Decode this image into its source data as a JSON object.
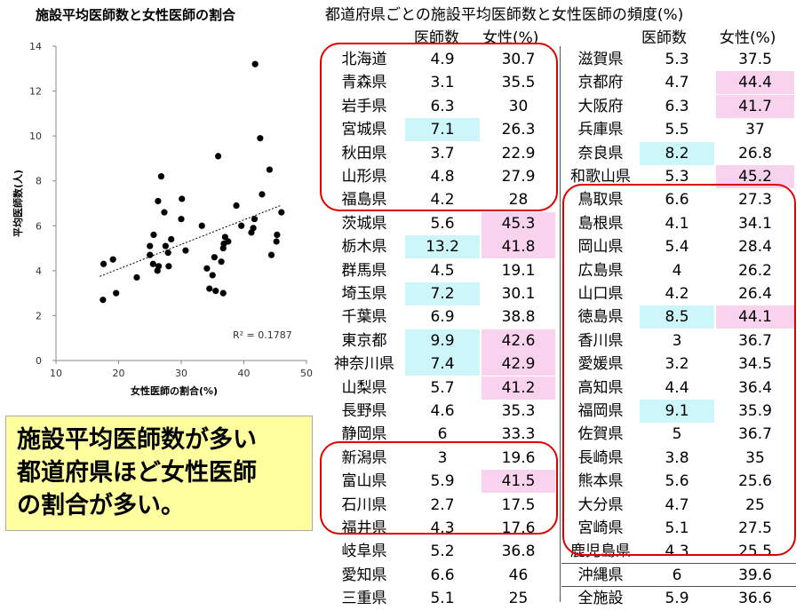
{
  "chart_data": {
    "type": "scatter",
    "title": "施設平均医師数と女性医師の割合",
    "xlabel": "女性医師の割合(%)",
    "ylabel": "平均医師数(人)",
    "xlim": [
      10,
      50
    ],
    "ylim": [
      0,
      14
    ],
    "x_ticks": [
      "10",
      "20",
      "30",
      "40",
      "50"
    ],
    "y_ticks": [
      "0",
      "2",
      "4",
      "6",
      "8",
      "10",
      "12",
      "14"
    ],
    "r2_label": "R² = 0.1787",
    "trendline": {
      "slope": 0.1093,
      "intercept": 1.89
    },
    "points": [
      [
        30.7,
        4.9
      ],
      [
        35.5,
        3.1
      ],
      [
        30,
        6.3
      ],
      [
        26.3,
        7.1
      ],
      [
        22.9,
        3.7
      ],
      [
        27.9,
        4.8
      ],
      [
        28,
        4.2
      ],
      [
        45.3,
        5.6
      ],
      [
        41.8,
        13.2
      ],
      [
        19.1,
        4.5
      ],
      [
        30.1,
        7.2
      ],
      [
        38.8,
        6.9
      ],
      [
        42.6,
        9.9
      ],
      [
        42.9,
        7.4
      ],
      [
        41.2,
        5.7
      ],
      [
        35.3,
        4.6
      ],
      [
        33.3,
        6
      ],
      [
        19.6,
        3
      ],
      [
        41.5,
        5.9
      ],
      [
        17.5,
        2.7
      ],
      [
        17.6,
        4.3
      ],
      [
        36.8,
        5.2
      ],
      [
        46,
        6.6
      ],
      [
        25,
        5.1
      ],
      [
        37.5,
        5.3
      ],
      [
        44.4,
        4.7
      ],
      [
        41.7,
        6.3
      ],
      [
        37,
        5.5
      ],
      [
        26.8,
        8.2
      ],
      [
        45.2,
        5.3
      ],
      [
        27.3,
        6.6
      ],
      [
        34.1,
        4.1
      ],
      [
        28.4,
        5.4
      ],
      [
        26.2,
        4
      ],
      [
        26.4,
        4.2
      ],
      [
        44.1,
        8.5
      ],
      [
        36.7,
        3
      ],
      [
        34.5,
        3.2
      ],
      [
        36.4,
        4.4
      ],
      [
        35.9,
        9.1
      ],
      [
        36.7,
        5
      ],
      [
        35,
        3.8
      ],
      [
        25.6,
        5.6
      ],
      [
        25,
        4.7
      ],
      [
        27.5,
        5.1
      ],
      [
        25.5,
        4.3
      ],
      [
        39.6,
        6
      ]
    ]
  },
  "table": {
    "title": "都道府県ごとの施設平均医師数と女性医師の頻度(%)",
    "header": {
      "doctors": "医師数",
      "female": "女性(%)"
    },
    "left": [
      {
        "pref": "北海道",
        "doctors": "4.9",
        "female": "30.7",
        "hl_d": "",
        "hl_f": ""
      },
      {
        "pref": "青森県",
        "doctors": "3.1",
        "female": "35.5",
        "hl_d": "",
        "hl_f": ""
      },
      {
        "pref": "岩手県",
        "doctors": "6.3",
        "female": "30",
        "hl_d": "",
        "hl_f": ""
      },
      {
        "pref": "宮城県",
        "doctors": "7.1",
        "female": "26.3",
        "hl_d": "cyan",
        "hl_f": ""
      },
      {
        "pref": "秋田県",
        "doctors": "3.7",
        "female": "22.9",
        "hl_d": "",
        "hl_f": ""
      },
      {
        "pref": "山形県",
        "doctors": "4.8",
        "female": "27.9",
        "hl_d": "",
        "hl_f": ""
      },
      {
        "pref": "福島県",
        "doctors": "4.2",
        "female": "28",
        "hl_d": "",
        "hl_f": ""
      },
      {
        "pref": "茨城県",
        "doctors": "5.6",
        "female": "45.3",
        "hl_d": "",
        "hl_f": "pink"
      },
      {
        "pref": "栃木県",
        "doctors": "13.2",
        "female": "41.8",
        "hl_d": "cyan",
        "hl_f": "pink"
      },
      {
        "pref": "群馬県",
        "doctors": "4.5",
        "female": "19.1",
        "hl_d": "",
        "hl_f": ""
      },
      {
        "pref": "埼玉県",
        "doctors": "7.2",
        "female": "30.1",
        "hl_d": "cyan",
        "hl_f": ""
      },
      {
        "pref": "千葉県",
        "doctors": "6.9",
        "female": "38.8",
        "hl_d": "",
        "hl_f": ""
      },
      {
        "pref": "東京都",
        "doctors": "9.9",
        "female": "42.6",
        "hl_d": "cyan",
        "hl_f": "pink"
      },
      {
        "pref": "神奈川県",
        "doctors": "7.4",
        "female": "42.9",
        "hl_d": "cyan",
        "hl_f": "pink"
      },
      {
        "pref": "山梨県",
        "doctors": "5.7",
        "female": "41.2",
        "hl_d": "",
        "hl_f": "pink"
      },
      {
        "pref": "長野県",
        "doctors": "4.6",
        "female": "35.3",
        "hl_d": "",
        "hl_f": ""
      },
      {
        "pref": "静岡県",
        "doctors": "6",
        "female": "33.3",
        "hl_d": "",
        "hl_f": ""
      },
      {
        "pref": "新潟県",
        "doctors": "3",
        "female": "19.6",
        "hl_d": "",
        "hl_f": ""
      },
      {
        "pref": "富山県",
        "doctors": "5.9",
        "female": "41.5",
        "hl_d": "",
        "hl_f": "pink"
      },
      {
        "pref": "石川県",
        "doctors": "2.7",
        "female": "17.5",
        "hl_d": "",
        "hl_f": ""
      },
      {
        "pref": "福井県",
        "doctors": "4.3",
        "female": "17.6",
        "hl_d": "",
        "hl_f": ""
      },
      {
        "pref": "岐阜県",
        "doctors": "5.2",
        "female": "36.8",
        "hl_d": "",
        "hl_f": ""
      },
      {
        "pref": "愛知県",
        "doctors": "6.6",
        "female": "46",
        "hl_d": "",
        "hl_f": ""
      },
      {
        "pref": "三重県",
        "doctors": "5.1",
        "female": "25",
        "hl_d": "",
        "hl_f": ""
      }
    ],
    "right": [
      {
        "pref": "滋賀県",
        "doctors": "5.3",
        "female": "37.5",
        "hl_d": "",
        "hl_f": ""
      },
      {
        "pref": "京都府",
        "doctors": "4.7",
        "female": "44.4",
        "hl_d": "",
        "hl_f": "pink"
      },
      {
        "pref": "大阪府",
        "doctors": "6.3",
        "female": "41.7",
        "hl_d": "",
        "hl_f": "pink"
      },
      {
        "pref": "兵庫県",
        "doctors": "5.5",
        "female": "37",
        "hl_d": "",
        "hl_f": ""
      },
      {
        "pref": "奈良県",
        "doctors": "8.2",
        "female": "26.8",
        "hl_d": "cyan",
        "hl_f": ""
      },
      {
        "pref": "和歌山県",
        "doctors": "5.3",
        "female": "45.2",
        "hl_d": "",
        "hl_f": "pink"
      },
      {
        "pref": "鳥取県",
        "doctors": "6.6",
        "female": "27.3",
        "hl_d": "",
        "hl_f": ""
      },
      {
        "pref": "島根県",
        "doctors": "4.1",
        "female": "34.1",
        "hl_d": "",
        "hl_f": ""
      },
      {
        "pref": "岡山県",
        "doctors": "5.4",
        "female": "28.4",
        "hl_d": "",
        "hl_f": ""
      },
      {
        "pref": "広島県",
        "doctors": "4",
        "female": "26.2",
        "hl_d": "",
        "hl_f": ""
      },
      {
        "pref": "山口県",
        "doctors": "4.2",
        "female": "26.4",
        "hl_d": "",
        "hl_f": ""
      },
      {
        "pref": "徳島県",
        "doctors": "8.5",
        "female": "44.1",
        "hl_d": "cyan",
        "hl_f": "pink"
      },
      {
        "pref": "香川県",
        "doctors": "3",
        "female": "36.7",
        "hl_d": "",
        "hl_f": ""
      },
      {
        "pref": "愛媛県",
        "doctors": "3.2",
        "female": "34.5",
        "hl_d": "",
        "hl_f": ""
      },
      {
        "pref": "高知県",
        "doctors": "4.4",
        "female": "36.4",
        "hl_d": "",
        "hl_f": ""
      },
      {
        "pref": "福岡県",
        "doctors": "9.1",
        "female": "35.9",
        "hl_d": "cyan",
        "hl_f": ""
      },
      {
        "pref": "佐賀県",
        "doctors": "5",
        "female": "36.7",
        "hl_d": "",
        "hl_f": ""
      },
      {
        "pref": "長崎県",
        "doctors": "3.8",
        "female": "35",
        "hl_d": "",
        "hl_f": ""
      },
      {
        "pref": "熊本県",
        "doctors": "5.6",
        "female": "25.6",
        "hl_d": "",
        "hl_f": ""
      },
      {
        "pref": "大分県",
        "doctors": "4.7",
        "female": "25",
        "hl_d": "",
        "hl_f": ""
      },
      {
        "pref": "宮崎県",
        "doctors": "5.1",
        "female": "27.5",
        "hl_d": "",
        "hl_f": ""
      },
      {
        "pref": "鹿児島県",
        "doctors": "4.3",
        "female": "25.5",
        "hl_d": "",
        "hl_f": ""
      },
      {
        "pref": "沖縄県",
        "doctors": "6",
        "female": "39.6",
        "hl_d": "",
        "hl_f": ""
      },
      {
        "pref": "全施設",
        "doctors": "5.9",
        "female": "36.6",
        "hl_d": "",
        "hl_f": ""
      }
    ]
  },
  "caption": {
    "lines": [
      "施設平均医師数が多い",
      "都道府県ほど女性医師",
      "の割合が多い。"
    ]
  },
  "colors": {
    "cyan": "#ccf6fa",
    "pink": "#f9d3ee",
    "oval": "#e00000",
    "point": "#000000"
  }
}
